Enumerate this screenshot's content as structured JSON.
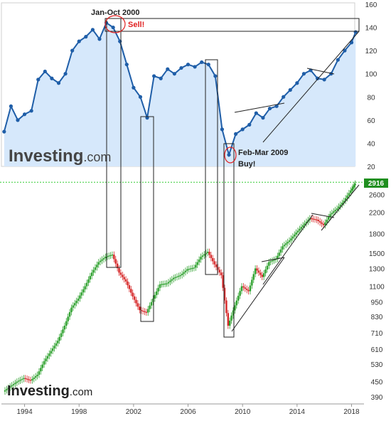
{
  "colors": {
    "top_line": "#1f5ea8",
    "top_fill": "#d6e8fb",
    "candle_up": "#2ca02c",
    "candle_down": "#d62728",
    "current_line": "#33cc33",
    "annotation_red": "#e02020",
    "box": "#222222"
  },
  "annotations": {
    "peak_label": "Jan-Oct 2000",
    "sell_label": "Sell!",
    "trough_label": "Feb-Mar 2009",
    "buy_label": "Buy!"
  },
  "logos": {
    "top_main": "Investing",
    "top_suffix": ".com",
    "bottom_main": "Investing",
    "bottom_suffix": ".com"
  },
  "chart_data": [
    {
      "type": "line",
      "y_ticks": [
        20,
        40,
        60,
        80,
        100,
        120,
        140,
        160
      ],
      "ylim": [
        20,
        160
      ],
      "grid": false,
      "area_fill": true,
      "x": [
        1992.5,
        1993,
        1993.5,
        1994,
        1994.5,
        1995,
        1995.5,
        1996,
        1996.5,
        1997,
        1997.5,
        1998,
        1998.5,
        1999,
        1999.5,
        2000,
        2000.5,
        2001,
        2001.5,
        2002,
        2002.5,
        2003,
        2003.5,
        2004,
        2004.5,
        2005,
        2005.5,
        2006,
        2006.5,
        2007,
        2007.5,
        2008,
        2008.5,
        2009,
        2009.5,
        2010,
        2010.5,
        2011,
        2011.5,
        2012,
        2012.5,
        2013,
        2013.5,
        2014,
        2014.5,
        2015,
        2015.5,
        2016,
        2016.5,
        2017,
        2017.5,
        2018,
        2018.3
      ],
      "values": [
        50,
        72,
        60,
        65,
        68,
        95,
        102,
        96,
        92,
        100,
        120,
        128,
        132,
        138,
        130,
        144,
        140,
        128,
        108,
        88,
        80,
        62,
        98,
        96,
        104,
        100,
        105,
        108,
        106,
        110,
        108,
        98,
        52,
        30,
        48,
        52,
        56,
        66,
        62,
        70,
        72,
        80,
        86,
        92,
        100,
        103,
        96,
        95,
        100,
        112,
        120,
        127,
        136
      ]
    },
    {
      "type": "bar",
      "subtype": "candlestick",
      "y_ticks": [
        390,
        450,
        530,
        610,
        710,
        830,
        950,
        1100,
        1300,
        1500,
        1800,
        2200,
        2600
      ],
      "current_value_label": "2916",
      "x_ticks": [
        "1994",
        "1998",
        "2002",
        "2006",
        "2010",
        "2014",
        "2018"
      ],
      "grid": false,
      "x": [
        1992.5,
        1993,
        1993.5,
        1994,
        1994.5,
        1995,
        1995.5,
        1996,
        1996.5,
        1997,
        1997.5,
        1998,
        1998.5,
        1999,
        1999.5,
        2000,
        2000.5,
        2001,
        2001.5,
        2002,
        2002.5,
        2003,
        2003.5,
        2004,
        2004.5,
        2005,
        2005.5,
        2006,
        2006.5,
        2007,
        2007.5,
        2008,
        2008.5,
        2009,
        2009.5,
        2010,
        2010.5,
        2011,
        2011.5,
        2012,
        2012.5,
        2013,
        2013.5,
        2014,
        2014.5,
        2015,
        2015.5,
        2016,
        2016.5,
        2017,
        2017.5,
        2018,
        2018.3
      ],
      "values": [
        410,
        430,
        450,
        465,
        455,
        480,
        545,
        600,
        660,
        760,
        900,
        980,
        1100,
        1250,
        1380,
        1450,
        1480,
        1250,
        1150,
        1000,
        880,
        860,
        980,
        1120,
        1130,
        1190,
        1220,
        1290,
        1310,
        1450,
        1520,
        1350,
        1220,
        760,
        920,
        1100,
        1050,
        1300,
        1200,
        1380,
        1420,
        1600,
        1690,
        1820,
        1950,
        2080,
        2050,
        1950,
        2160,
        2280,
        2450,
        2700,
        2880
      ]
    }
  ]
}
